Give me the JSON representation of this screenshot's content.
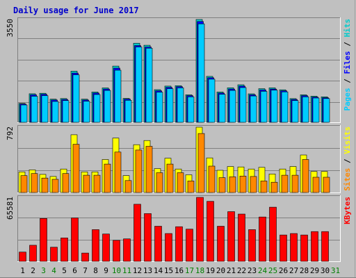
{
  "title": "Daily usage for June 2017",
  "colors": {
    "background": "#c0c0c0",
    "frame_dark": "#808080",
    "title": "#0000cc",
    "grid": "#808080",
    "hits": "#00cccc",
    "files": "#0000ff",
    "pages": "#00ccff",
    "visits": "#ffff00",
    "sites": "#ff8800",
    "kbytes": "#ff0000",
    "weekend_label": "#008000",
    "weekday_label": "#000000"
  },
  "chart_data": [
    {
      "type": "bar",
      "name": "hits-files-pages",
      "max_label": "3550",
      "ylim": [
        0,
        3550
      ],
      "legend": [
        "Pages",
        "Files",
        "Hits"
      ],
      "categories": [
        "1",
        "2",
        "3",
        "4",
        "5",
        "6",
        "7",
        "8",
        "9",
        "10",
        "11",
        "12",
        "13",
        "14",
        "15",
        "16",
        "17",
        "18",
        "19",
        "20",
        "21",
        "22",
        "23",
        "24",
        "25",
        "26",
        "27",
        "28",
        "29",
        "30",
        "31"
      ],
      "series": [
        {
          "name": "Hits",
          "values": [
            652,
            986,
            1003,
            798,
            820,
            1765,
            799,
            1045,
            1188,
            1940,
            826,
            2730,
            2660,
            1127,
            1249,
            1264,
            951,
            3550,
            1585,
            1049,
            1191,
            1296,
            984,
            1160,
            1189,
            1123,
            818,
            951,
            903,
            880,
            0
          ]
        },
        {
          "name": "Files",
          "values": [
            630,
            950,
            970,
            770,
            790,
            1700,
            770,
            1010,
            1150,
            1870,
            800,
            2650,
            2600,
            1090,
            1210,
            1230,
            920,
            3480,
            1540,
            1010,
            1150,
            1250,
            950,
            1120,
            1150,
            1090,
            790,
            920,
            870,
            850,
            0
          ]
        },
        {
          "name": "Pages",
          "values": [
            600,
            900,
            920,
            720,
            750,
            1640,
            730,
            960,
            1100,
            1800,
            760,
            2600,
            2560,
            1040,
            1160,
            1190,
            880,
            3400,
            1490,
            970,
            1100,
            1200,
            910,
            1070,
            1110,
            1050,
            750,
            880,
            840,
            820,
            0
          ]
        }
      ]
    },
    {
      "type": "bar",
      "name": "visits-sites",
      "max_label": "792",
      "ylim": [
        0,
        792
      ],
      "legend": [
        "Sites",
        "Visits"
      ],
      "categories": [
        "1",
        "2",
        "3",
        "4",
        "5",
        "6",
        "7",
        "8",
        "9",
        "10",
        "11",
        "12",
        "13",
        "14",
        "15",
        "16",
        "17",
        "18",
        "19",
        "20",
        "21",
        "22",
        "23",
        "24",
        "25",
        "26",
        "27",
        "28",
        "29",
        "30",
        "31"
      ],
      "series": [
        {
          "name": "Visits",
          "values": [
            250,
            275,
            220,
            195,
            285,
            700,
            250,
            250,
            400,
            660,
            205,
            580,
            630,
            290,
            415,
            285,
            215,
            792,
            420,
            270,
            315,
            310,
            285,
            305,
            225,
            285,
            315,
            455,
            255,
            255,
            0
          ]
        },
        {
          "name": "Sites",
          "values": [
            205,
            230,
            175,
            160,
            230,
            585,
            210,
            210,
            345,
            490,
            145,
            515,
            560,
            240,
            345,
            240,
            140,
            715,
            320,
            180,
            190,
            200,
            195,
            140,
            125,
            210,
            210,
            400,
            185,
            185,
            0
          ]
        }
      ]
    },
    {
      "type": "bar",
      "name": "kbytes",
      "max_label": "65581",
      "ylim": [
        0,
        65581
      ],
      "legend": [
        "KBytes"
      ],
      "categories": [
        "1",
        "2",
        "3",
        "4",
        "5",
        "6",
        "7",
        "8",
        "9",
        "10",
        "11",
        "12",
        "13",
        "14",
        "15",
        "16",
        "17",
        "18",
        "19",
        "20",
        "21",
        "22",
        "23",
        "24",
        "25",
        "26",
        "27",
        "28",
        "29",
        "30",
        "31"
      ],
      "series": [
        {
          "name": "KBytes",
          "values": [
            9500,
            16500,
            44000,
            14500,
            24000,
            44500,
            8500,
            32500,
            28000,
            21500,
            23000,
            58500,
            49000,
            36000,
            28500,
            35500,
            33000,
            65581,
            61500,
            36000,
            51000,
            48500,
            32500,
            45500,
            55500,
            27000,
            28500,
            27000,
            30500,
            30500,
            0
          ]
        }
      ]
    }
  ]
}
